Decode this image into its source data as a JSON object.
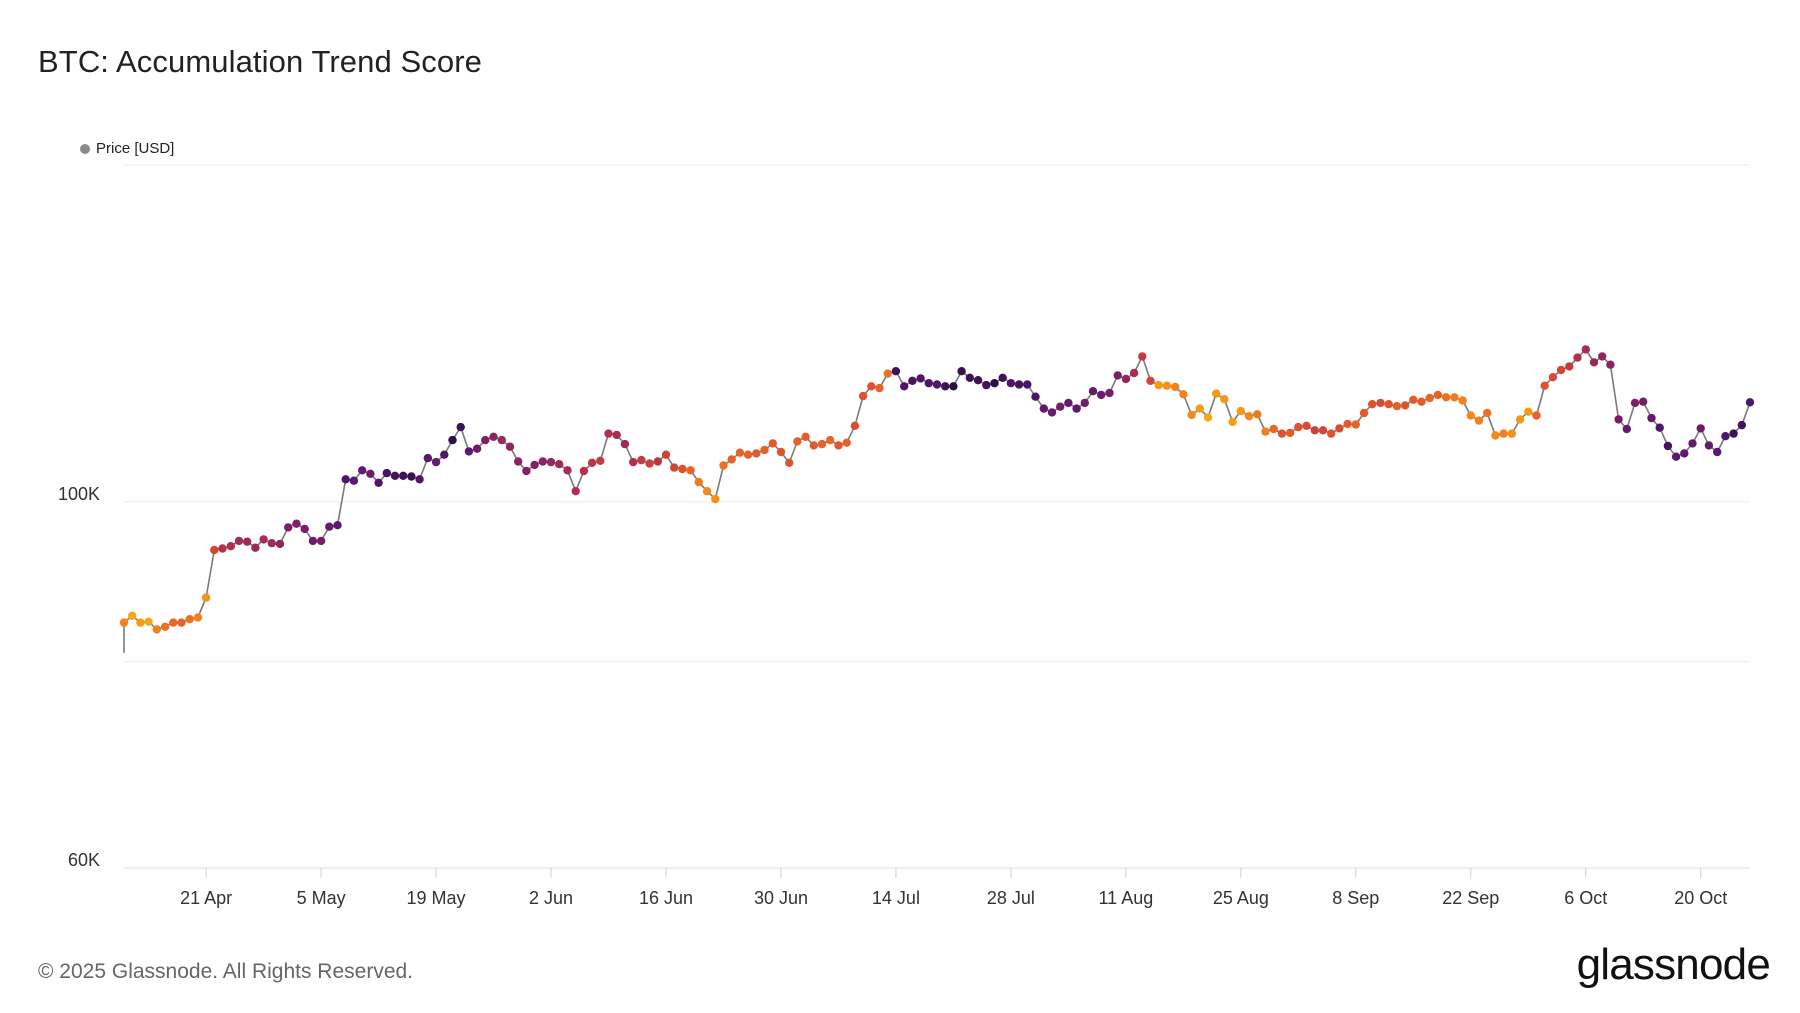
{
  "title": "BTC: Accumulation Trend Score",
  "legend": {
    "label": "Price [USD]",
    "color": "#8a8a8a"
  },
  "footer": {
    "copyright": "© 2025 Glassnode. All Rights Reserved.",
    "brand": "glassnode"
  },
  "colors": {
    "line": "#7a7a7a",
    "grid": "#ececec",
    "axis": "#dddddd",
    "score_scale": [
      "#f5b40f",
      "#f58c1a",
      "#e1572b",
      "#b7304b",
      "#872266",
      "#561770",
      "#1c0a32"
    ]
  },
  "chart_data": {
    "type": "scatter",
    "title": "BTC: Accumulation Trend Score",
    "xlabel": "",
    "ylabel": "",
    "x_start": "2025-04-11",
    "x_end": "2025-10-26",
    "x_ticks": [
      {
        "label": "21 Apr",
        "date": "2025-04-21"
      },
      {
        "label": "5 May",
        "date": "2025-05-05"
      },
      {
        "label": "19 May",
        "date": "2025-05-19"
      },
      {
        "label": "2 Jun",
        "date": "2025-06-02"
      },
      {
        "label": "16 Jun",
        "date": "2025-06-16"
      },
      {
        "label": "30 Jun",
        "date": "2025-06-30"
      },
      {
        "label": "14 Jul",
        "date": "2025-07-14"
      },
      {
        "label": "28 Jul",
        "date": "2025-07-28"
      },
      {
        "label": "11 Aug",
        "date": "2025-08-11"
      },
      {
        "label": "25 Aug",
        "date": "2025-08-25"
      },
      {
        "label": "8 Sep",
        "date": "2025-09-08"
      },
      {
        "label": "22 Sep",
        "date": "2025-09-22"
      },
      {
        "label": "6 Oct",
        "date": "2025-10-06"
      },
      {
        "label": "20 Oct",
        "date": "2025-10-20"
      }
    ],
    "y_scale": "log",
    "ylim": [
      60000,
      160000
    ],
    "y_ticks": [
      {
        "label": "60K",
        "value": 60000
      },
      {
        "label": "100K",
        "value": 100000
      }
    ],
    "y_gridlines": [
      60000,
      80000,
      100000,
      160000
    ],
    "grid": true,
    "legend_position": "top-left",
    "series": [
      {
        "name": "Price [USD]",
        "color_by": "accumulation trend score (0 = yellow, 1 = dark purple)",
        "x": [
          "2025-04-11",
          "2025-04-12",
          "2025-04-13",
          "2025-04-14",
          "2025-04-15",
          "2025-04-16",
          "2025-04-17",
          "2025-04-18",
          "2025-04-19",
          "2025-04-20",
          "2025-04-21",
          "2025-04-22",
          "2025-04-23",
          "2025-04-24",
          "2025-04-25",
          "2025-04-26",
          "2025-04-27",
          "2025-04-28",
          "2025-04-29",
          "2025-04-30",
          "2025-05-01",
          "2025-05-02",
          "2025-05-03",
          "2025-05-04",
          "2025-05-05",
          "2025-05-06",
          "2025-05-07",
          "2025-05-08",
          "2025-05-09",
          "2025-05-10",
          "2025-05-11",
          "2025-05-12",
          "2025-05-13",
          "2025-05-14",
          "2025-05-15",
          "2025-05-16",
          "2025-05-17",
          "2025-05-18",
          "2025-05-19",
          "2025-05-20",
          "2025-05-21",
          "2025-05-22",
          "2025-05-23",
          "2025-05-24",
          "2025-05-25",
          "2025-05-26",
          "2025-05-27",
          "2025-05-28",
          "2025-05-29",
          "2025-05-30",
          "2025-05-31",
          "2025-06-01",
          "2025-06-02",
          "2025-06-03",
          "2025-06-04",
          "2025-06-05",
          "2025-06-06",
          "2025-06-07",
          "2025-06-08",
          "2025-06-09",
          "2025-06-10",
          "2025-06-11",
          "2025-06-12",
          "2025-06-13",
          "2025-06-14",
          "2025-06-15",
          "2025-06-16",
          "2025-06-17",
          "2025-06-18",
          "2025-06-19",
          "2025-06-20",
          "2025-06-21",
          "2025-06-22",
          "2025-06-23",
          "2025-06-24",
          "2025-06-25",
          "2025-06-26",
          "2025-06-27",
          "2025-06-28",
          "2025-06-29",
          "2025-06-30",
          "2025-07-01",
          "2025-07-02",
          "2025-07-03",
          "2025-07-04",
          "2025-07-05",
          "2025-07-06",
          "2025-07-07",
          "2025-07-08",
          "2025-07-09",
          "2025-07-10",
          "2025-07-11",
          "2025-07-12",
          "2025-07-13",
          "2025-07-14",
          "2025-07-15",
          "2025-07-16",
          "2025-07-17",
          "2025-07-18",
          "2025-07-19",
          "2025-07-20",
          "2025-07-21",
          "2025-07-22",
          "2025-07-23",
          "2025-07-24",
          "2025-07-25",
          "2025-07-26",
          "2025-07-27",
          "2025-07-28",
          "2025-07-29",
          "2025-07-30",
          "2025-07-31",
          "2025-08-01",
          "2025-08-02",
          "2025-08-03",
          "2025-08-04",
          "2025-08-05",
          "2025-08-06",
          "2025-08-07",
          "2025-08-08",
          "2025-08-09",
          "2025-08-10",
          "2025-08-11",
          "2025-08-12",
          "2025-08-13",
          "2025-08-14",
          "2025-08-15",
          "2025-08-16",
          "2025-08-17",
          "2025-08-18",
          "2025-08-19",
          "2025-08-20",
          "2025-08-21",
          "2025-08-22",
          "2025-08-23",
          "2025-08-24",
          "2025-08-25",
          "2025-08-26",
          "2025-08-27",
          "2025-08-28",
          "2025-08-29",
          "2025-08-30",
          "2025-08-31",
          "2025-09-01",
          "2025-09-02",
          "2025-09-03",
          "2025-09-04",
          "2025-09-05",
          "2025-09-06",
          "2025-09-07",
          "2025-09-08",
          "2025-09-09",
          "2025-09-10",
          "2025-09-11",
          "2025-09-12",
          "2025-09-13",
          "2025-09-14",
          "2025-09-15",
          "2025-09-16",
          "2025-09-17",
          "2025-09-18",
          "2025-09-19",
          "2025-09-20",
          "2025-09-21",
          "2025-09-22",
          "2025-09-23",
          "2025-09-24",
          "2025-09-25",
          "2025-09-26",
          "2025-09-27",
          "2025-09-28",
          "2025-09-29",
          "2025-09-30",
          "2025-10-01",
          "2025-10-02",
          "2025-10-03",
          "2025-10-04",
          "2025-10-05",
          "2025-10-06",
          "2025-10-07",
          "2025-10-08",
          "2025-10-09",
          "2025-10-10",
          "2025-10-11",
          "2025-10-12",
          "2025-10-13",
          "2025-10-14",
          "2025-10-15",
          "2025-10-16",
          "2025-10-17",
          "2025-10-18",
          "2025-10-19",
          "2025-10-20",
          "2025-10-21",
          "2025-10-22",
          "2025-10-23",
          "2025-10-24",
          "2025-10-25",
          "2025-10-26"
        ],
        "y": [
          84500,
          85300,
          84500,
          84600,
          83700,
          84000,
          84500,
          84500,
          84900,
          85100,
          87500,
          93500,
          93700,
          94000,
          94700,
          94600,
          93800,
          94900,
          94400,
          94300,
          96500,
          97000,
          96300,
          94700,
          94700,
          96600,
          96800,
          103200,
          103000,
          104500,
          104000,
          102700,
          104100,
          103700,
          103700,
          103600,
          103200,
          106300,
          105700,
          106800,
          109000,
          111000,
          107300,
          107700,
          109000,
          109500,
          109000,
          108000,
          105800,
          104400,
          105300,
          105800,
          105700,
          105400,
          104500,
          101500,
          104400,
          105600,
          105900,
          110000,
          109800,
          108400,
          105700,
          106000,
          105500,
          105800,
          106800,
          104900,
          104700,
          104500,
          102800,
          101500,
          100400,
          105200,
          106100,
          107100,
          106800,
          107000,
          107500,
          108500,
          107200,
          105600,
          108800,
          109500,
          108200,
          108400,
          109000,
          108200,
          108600,
          111200,
          115900,
          117500,
          117200,
          119600,
          120000,
          117500,
          118400,
          118800,
          118000,
          117800,
          117500,
          117500,
          120000,
          118900,
          118500,
          117700,
          118000,
          118900,
          118000,
          117800,
          117800,
          115800,
          113900,
          113300,
          114200,
          114800,
          113900,
          114800,
          116700,
          116100,
          116400,
          119300,
          118700,
          119700,
          122500,
          118400,
          117700,
          117600,
          117400,
          116200,
          112900,
          113900,
          112500,
          116300,
          115400,
          111800,
          113500,
          112700,
          113000,
          110300,
          110700,
          110000,
          110100,
          111000,
          111200,
          110500,
          110500,
          110000,
          110800,
          111500,
          111400,
          113200,
          114600,
          114800,
          114600,
          114300,
          114400,
          115300,
          115000,
          115600,
          116100,
          115700,
          115700,
          115200,
          112800,
          112000,
          113200,
          109700,
          110000,
          110000,
          112200,
          113400,
          112800,
          117600,
          119000,
          120200,
          120800,
          122300,
          123700,
          121500,
          122500,
          121100,
          112200,
          110700,
          114800,
          115000,
          112400,
          110900,
          108100,
          106500,
          107000,
          108500,
          110800,
          108200,
          107200,
          109600,
          110000,
          111300,
          114900
        ],
        "score": [
          0.2,
          0.05,
          0.1,
          0.05,
          0.2,
          0.25,
          0.28,
          0.3,
          0.25,
          0.2,
          0.15,
          0.4,
          0.5,
          0.52,
          0.55,
          0.58,
          0.6,
          0.55,
          0.58,
          0.62,
          0.7,
          0.7,
          0.72,
          0.75,
          0.72,
          0.78,
          0.8,
          0.85,
          0.82,
          0.8,
          0.75,
          0.85,
          0.88,
          0.88,
          0.9,
          0.92,
          0.85,
          0.82,
          0.78,
          0.85,
          0.95,
          0.9,
          0.82,
          0.75,
          0.7,
          0.65,
          0.6,
          0.62,
          0.65,
          0.68,
          0.7,
          0.66,
          0.62,
          0.58,
          0.55,
          0.52,
          0.5,
          0.48,
          0.45,
          0.5,
          0.55,
          0.58,
          0.5,
          0.45,
          0.42,
          0.48,
          0.42,
          0.4,
          0.35,
          0.3,
          0.22,
          0.18,
          0.15,
          0.25,
          0.3,
          0.3,
          0.3,
          0.32,
          0.3,
          0.32,
          0.35,
          0.35,
          0.3,
          0.32,
          0.32,
          0.3,
          0.28,
          0.34,
          0.3,
          0.38,
          0.35,
          0.35,
          0.3,
          0.25,
          0.9,
          0.85,
          0.88,
          0.85,
          0.85,
          0.85,
          0.9,
          0.95,
          0.92,
          0.9,
          0.9,
          0.88,
          0.95,
          0.9,
          0.85,
          0.88,
          0.86,
          0.85,
          0.8,
          0.78,
          0.72,
          0.78,
          0.8,
          0.75,
          0.78,
          0.78,
          0.72,
          0.7,
          0.62,
          0.55,
          0.45,
          0.4,
          0.1,
          0.15,
          0.2,
          0.2,
          0.18,
          0.1,
          0.05,
          0.1,
          0.12,
          0.08,
          0.1,
          0.18,
          0.22,
          0.2,
          0.28,
          0.35,
          0.32,
          0.35,
          0.38,
          0.42,
          0.4,
          0.35,
          0.38,
          0.32,
          0.3,
          0.32,
          0.35,
          0.38,
          0.35,
          0.3,
          0.35,
          0.32,
          0.32,
          0.28,
          0.3,
          0.25,
          0.22,
          0.2,
          0.18,
          0.2,
          0.25,
          0.18,
          0.2,
          0.15,
          0.12,
          0.1,
          0.3,
          0.35,
          0.38,
          0.4,
          0.45,
          0.5,
          0.55,
          0.6,
          0.62,
          0.65,
          0.72,
          0.78,
          0.7,
          0.72,
          0.8,
          0.85,
          0.88,
          0.82,
          0.8,
          0.78,
          0.75,
          0.78,
          0.82,
          0.85,
          0.9,
          0.88,
          0.85
        ]
      }
    ]
  }
}
